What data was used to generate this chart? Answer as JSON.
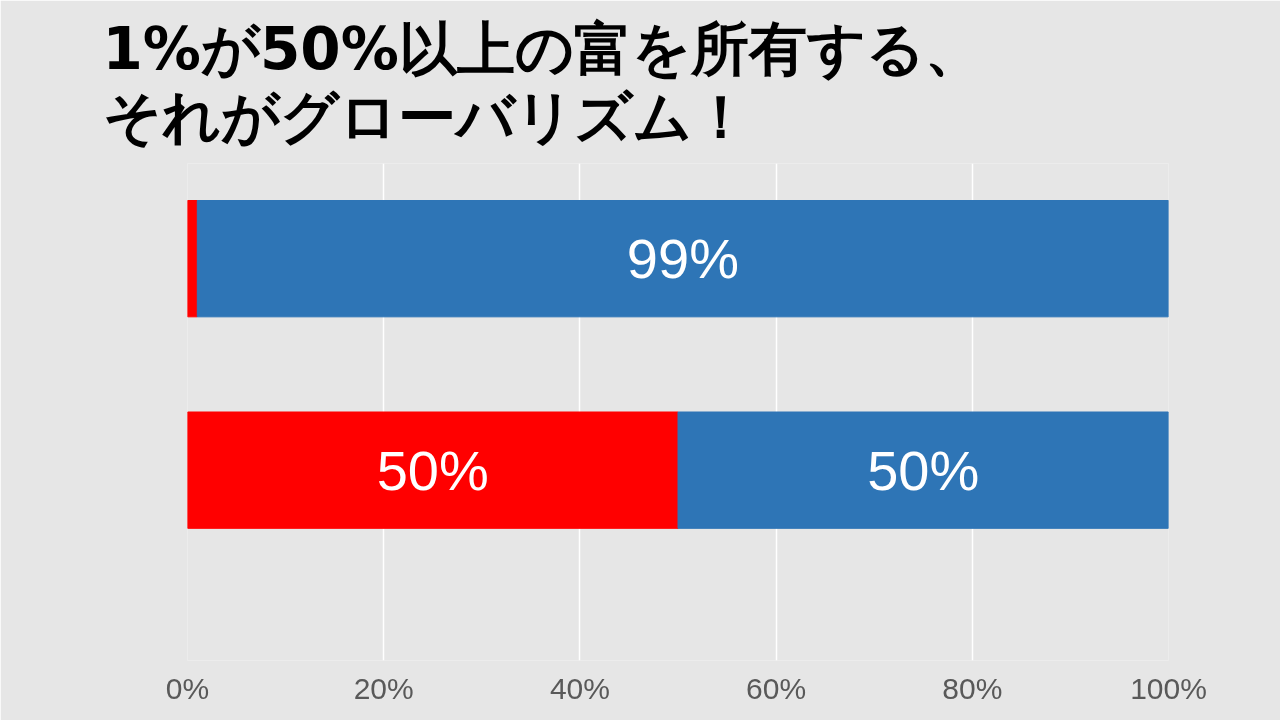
{
  "chart_data": {
    "type": "bar",
    "orientation": "horizontal",
    "stacked": true,
    "title": "1%が50%以上の富を所有する、それがグローバリズム！",
    "categories": [
      null,
      null
    ],
    "series": [
      {
        "color": "#ff0000",
        "values": [
          1,
          50
        ],
        "value_labels": [
          null,
          "50%"
        ]
      },
      {
        "color": "#2e75b6",
        "values": [
          99,
          50
        ],
        "value_labels": [
          "99%",
          "50%"
        ]
      }
    ],
    "xlim": [
      0,
      100
    ],
    "xticks": [
      {
        "value": 0,
        "label": "0%"
      },
      {
        "value": 20,
        "label": "20%"
      },
      {
        "value": 40,
        "label": "40%"
      },
      {
        "value": 60,
        "label": "60%"
      },
      {
        "value": 80,
        "label": "80%"
      },
      {
        "value": 100,
        "label": "100%"
      }
    ],
    "grid": "x",
    "tick_labels": "x"
  }
}
